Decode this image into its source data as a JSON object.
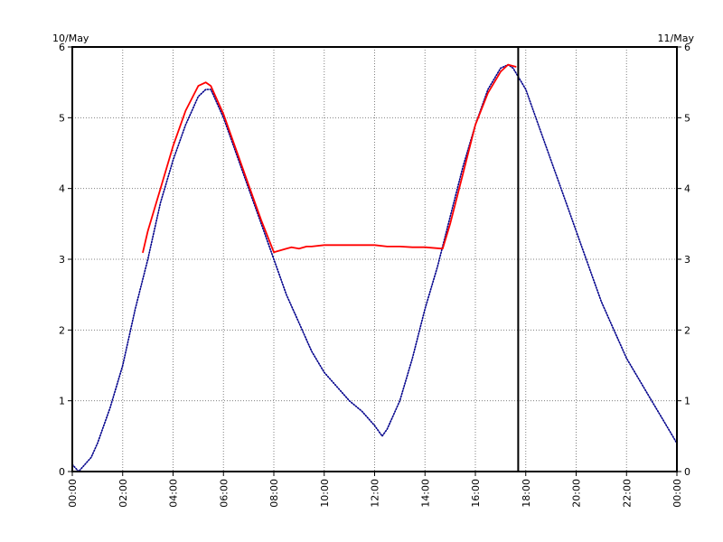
{
  "chart_data": {
    "type": "line",
    "title": "",
    "xlabel": "",
    "ylabel": "",
    "date_left": "10/May",
    "date_right": "11/May",
    "x_tick_labels": [
      "00:00",
      "02:00",
      "04:00",
      "06:00",
      "08:00",
      "10:00",
      "12:00",
      "14:00",
      "16:00",
      "18:00",
      "20:00",
      "22:00",
      "00:00"
    ],
    "y_tick_labels": [
      "0",
      "1",
      "2",
      "3",
      "4",
      "5",
      "6"
    ],
    "xlim": [
      0,
      24
    ],
    "ylim": [
      0,
      6
    ],
    "grid": true,
    "legend": "none",
    "cursor_line_x": 17.7,
    "colors": {
      "predicted": "#00008b",
      "observed": "#ff0000",
      "cursor": "#000000"
    },
    "series": [
      {
        "key": "predicted",
        "x": [
          0.0,
          0.25,
          0.5,
          0.75,
          1.0,
          1.5,
          2.0,
          2.5,
          3.0,
          3.5,
          4.0,
          4.5,
          5.0,
          5.3,
          5.5,
          6.0,
          6.5,
          7.0,
          7.5,
          8.0,
          8.5,
          9.0,
          9.5,
          10.0,
          10.5,
          11.0,
          11.5,
          12.0,
          12.3,
          12.5,
          13.0,
          13.5,
          14.0,
          14.5,
          15.0,
          15.5,
          16.0,
          16.5,
          17.0,
          17.3,
          17.5,
          18.0,
          18.5,
          19.0,
          19.5,
          20.0,
          20.5,
          21.0,
          21.5,
          22.0,
          22.5,
          23.0,
          23.5,
          24.0
        ],
        "y": [
          0.1,
          0.0,
          0.1,
          0.2,
          0.4,
          0.9,
          1.5,
          2.3,
          3.0,
          3.8,
          4.4,
          4.9,
          5.3,
          5.4,
          5.4,
          5.0,
          4.5,
          4.0,
          3.5,
          3.0,
          2.5,
          2.1,
          1.7,
          1.4,
          1.2,
          1.0,
          0.85,
          0.65,
          0.5,
          0.6,
          1.0,
          1.6,
          2.3,
          2.9,
          3.6,
          4.3,
          4.9,
          5.4,
          5.7,
          5.75,
          5.7,
          5.4,
          4.9,
          4.4,
          3.9,
          3.4,
          2.9,
          2.4,
          2.0,
          1.6,
          1.3,
          1.0,
          0.7,
          0.4
        ]
      },
      {
        "key": "observed",
        "x": [
          2.8,
          3.0,
          3.5,
          4.0,
          4.5,
          5.0,
          5.3,
          5.5,
          6.0,
          6.5,
          7.0,
          7.5,
          8.0,
          8.5,
          8.7,
          9.0,
          9.3,
          9.5,
          10.0,
          11.0,
          12.0,
          12.5,
          13.0,
          13.5,
          14.0,
          14.7,
          15.0,
          15.5,
          16.0,
          16.5,
          17.0,
          17.3,
          17.6
        ],
        "y": [
          3.1,
          3.4,
          4.0,
          4.6,
          5.1,
          5.45,
          5.5,
          5.45,
          5.05,
          4.55,
          4.05,
          3.55,
          3.1,
          3.15,
          3.17,
          3.15,
          3.18,
          3.18,
          3.2,
          3.2,
          3.2,
          3.18,
          3.18,
          3.17,
          3.17,
          3.15,
          3.5,
          4.2,
          4.9,
          5.35,
          5.65,
          5.75,
          5.72
        ]
      }
    ]
  }
}
